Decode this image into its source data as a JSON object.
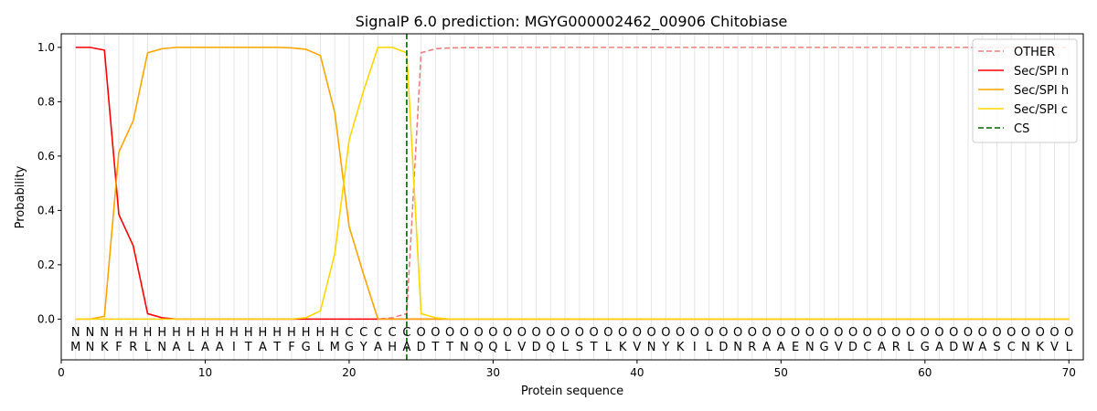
{
  "chart_data": {
    "type": "line",
    "title": "SignalP 6.0 prediction: MGYG000002462_00906 Chitobiase",
    "xlabel": "Protein sequence",
    "ylabel": "Probability",
    "xlim": [
      0,
      71
    ],
    "ylim": [
      -0.15,
      1.05
    ],
    "x_ticks": [
      0,
      10,
      20,
      30,
      40,
      50,
      60,
      70
    ],
    "y_ticks": [
      0.0,
      0.2,
      0.4,
      0.6,
      0.8,
      1.0
    ],
    "x_tick_labels": [
      "0",
      "10",
      "20",
      "30",
      "40",
      "50",
      "60",
      "70"
    ],
    "y_tick_labels": [
      "0.0",
      "0.2",
      "0.4",
      "0.6",
      "0.8",
      "1.0"
    ],
    "grid": "vertical lines at every residue",
    "legend_position": "top-right",
    "sequence": "MNKFRLNALAAITATFGLMGYAHADTTNQQLVDQLSTLKVNYKILDNRAAENGVDCARLGADWASCNKVL",
    "labels": "NNNHHHHHHHHHHHHHHHHCCCCCOOOOOOOOOOOOOOOOOOOOOOOOOOOOOOOOOOOOOOOOOOOOOO",
    "label_colors": {
      "N": "#ff0000",
      "H": "#ffa500",
      "C": "#ffd700",
      "O": "#808080"
    },
    "cleavage_site": 24,
    "series": [
      {
        "name": "OTHER",
        "color": "#f08080",
        "dash": "dashed",
        "values": [
          0.0,
          0.0,
          0.0,
          0.0,
          0.0,
          0.0,
          0.0,
          0.0,
          0.0,
          0.0,
          0.0,
          0.0,
          0.0,
          0.0,
          0.0,
          0.0,
          0.0,
          0.0,
          0.0,
          0.0,
          0.0,
          0.0,
          0.005,
          0.02,
          0.98,
          0.995,
          0.998,
          0.999,
          0.999,
          1.0,
          1.0,
          1.0,
          1.0,
          1.0,
          1.0,
          1.0,
          1.0,
          1.0,
          1.0,
          1.0,
          1.0,
          1.0,
          1.0,
          1.0,
          1.0,
          1.0,
          1.0,
          1.0,
          1.0,
          1.0,
          1.0,
          1.0,
          1.0,
          1.0,
          1.0,
          1.0,
          1.0,
          1.0,
          1.0,
          1.0,
          1.0,
          1.0,
          1.0,
          1.0,
          1.0,
          1.0,
          1.0,
          1.0,
          1.0,
          1.0
        ]
      },
      {
        "name": "Sec/SPI n",
        "color": "#ff0000",
        "dash": "solid",
        "values": [
          1.0,
          1.0,
          0.99,
          0.385,
          0.27,
          0.02,
          0.005,
          0.0,
          0.0,
          0.0,
          0.0,
          0.0,
          0.0,
          0.0,
          0.0,
          0.0,
          0.0,
          0.0,
          0.0,
          0.0,
          0.0,
          0.0,
          0.0,
          0.0,
          0.0,
          0.0,
          0.0,
          0.0,
          0.0,
          0.0,
          0.0,
          0.0,
          0.0,
          0.0,
          0.0,
          0.0,
          0.0,
          0.0,
          0.0,
          0.0,
          0.0,
          0.0,
          0.0,
          0.0,
          0.0,
          0.0,
          0.0,
          0.0,
          0.0,
          0.0,
          0.0,
          0.0,
          0.0,
          0.0,
          0.0,
          0.0,
          0.0,
          0.0,
          0.0,
          0.0,
          0.0,
          0.0,
          0.0,
          0.0,
          0.0,
          0.0,
          0.0,
          0.0,
          0.0,
          0.0
        ]
      },
      {
        "name": "Sec/SPI h",
        "color": "#ffa500",
        "dash": "solid",
        "values": [
          0.0,
          0.0,
          0.01,
          0.615,
          0.73,
          0.98,
          0.995,
          1.0,
          1.0,
          1.0,
          1.0,
          1.0,
          1.0,
          1.0,
          1.0,
          0.998,
          0.993,
          0.97,
          0.76,
          0.34,
          0.165,
          0.0,
          0.0,
          0.0,
          0.0,
          0.0,
          0.0,
          0.0,
          0.0,
          0.0,
          0.0,
          0.0,
          0.0,
          0.0,
          0.0,
          0.0,
          0.0,
          0.0,
          0.0,
          0.0,
          0.0,
          0.0,
          0.0,
          0.0,
          0.0,
          0.0,
          0.0,
          0.0,
          0.0,
          0.0,
          0.0,
          0.0,
          0.0,
          0.0,
          0.0,
          0.0,
          0.0,
          0.0,
          0.0,
          0.0,
          0.0,
          0.0,
          0.0,
          0.0,
          0.0,
          0.0,
          0.0,
          0.0,
          0.0,
          0.0
        ]
      },
      {
        "name": "Sec/SPI c",
        "color": "#ffd700",
        "dash": "solid",
        "values": [
          0.0,
          0.0,
          0.0,
          0.0,
          0.0,
          0.0,
          0.0,
          0.0,
          0.0,
          0.0,
          0.0,
          0.0,
          0.0,
          0.0,
          0.0,
          0.0,
          0.005,
          0.03,
          0.24,
          0.66,
          0.84,
          1.0,
          1.0,
          0.98,
          0.02,
          0.005,
          0.0,
          0.0,
          0.0,
          0.0,
          0.0,
          0.0,
          0.0,
          0.0,
          0.0,
          0.0,
          0.0,
          0.0,
          0.0,
          0.0,
          0.0,
          0.0,
          0.0,
          0.0,
          0.0,
          0.0,
          0.0,
          0.0,
          0.0,
          0.0,
          0.0,
          0.0,
          0.0,
          0.0,
          0.0,
          0.0,
          0.0,
          0.0,
          0.0,
          0.0,
          0.0,
          0.0,
          0.0,
          0.0,
          0.0,
          0.0,
          0.0,
          0.0,
          0.0,
          0.0
        ]
      }
    ],
    "cs_legend": {
      "name": "CS",
      "color": "#006400",
      "dash": "dashed"
    }
  }
}
